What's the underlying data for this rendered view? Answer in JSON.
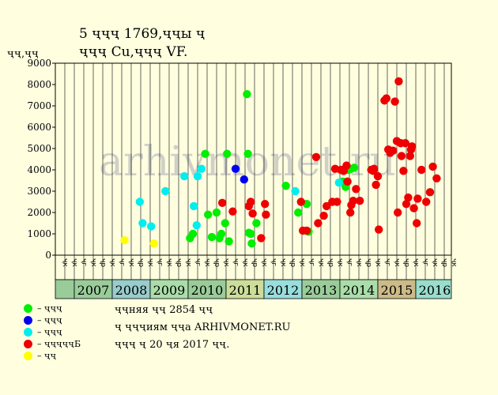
{
  "title_line1": "5 ҷҷҷ 1769,ҷҷы ҷ",
  "title_line2": "ҷҷҷ Cu,ҷҷҷ VF.",
  "y_axis_label": "ҷҷ,ҷҷ",
  "watermark": "arhivmonet.ru",
  "legend": [
    {
      "label": "– ҷҷҷ",
      "color": "#00ee00"
    },
    {
      "label": "– ҷҷҷ",
      "color": "#0000ee"
    },
    {
      "label": "– ҷҷҷ",
      "color": "#00eeee"
    },
    {
      "label": "– ҷҷҷҷҷБ",
      "color": "#ee0000"
    },
    {
      "label": "– ҷҷ",
      "color": "#ffff00"
    }
  ],
  "notes": {
    "line1": "ҷҷняя ҷҷ 2854 ҷҷ",
    "line2": "ҷ ҷҷҷиям ҷҷа ARHIVMONET.RU",
    "line3": "ҷҷҷ ҷ 20 ҷя 2017 ҷҷ."
  },
  "chart_data": {
    "type": "scatter",
    "ylim": [
      0,
      9000
    ],
    "yticks": [
      0,
      1000,
      2000,
      3000,
      4000,
      5000,
      6000,
      7000,
      8000,
      9000
    ],
    "months": [
      "ҷк",
      "ҷк",
      "ҷг",
      "ҷк",
      "ҷр",
      "ҷк",
      "ҷг",
      "ҷк",
      "ҷр",
      "ҷк",
      "ҷг",
      "ҷк",
      "ҷр",
      "ҷк",
      "ҷг",
      "ҷк",
      "ҷр",
      "ҷк",
      "ҷг",
      "ҷк",
      "ҷр",
      "ҷк",
      "ҷг",
      "ҷк",
      "ҷр",
      "ҷк",
      "ҷг",
      "ҷк",
      "ҷр",
      "ҷк",
      "ҷг",
      "ҷк",
      "ҷр",
      "ҷк",
      "ҷг",
      "ҷк",
      "ҷр",
      "ҷк",
      "ҷг",
      "ҷк",
      "ҷр",
      "ҷк",
      "ҷг",
      "ҷк",
      "ҷр",
      "ҷк",
      "ҷг",
      "ҷк",
      "ҷр",
      "ҷк"
    ],
    "years": [
      {
        "label": "",
        "start": 0,
        "span": 2,
        "color": "#99cc99"
      },
      {
        "label": "2007",
        "start": 2,
        "span": 4,
        "color": "#99cc99"
      },
      {
        "label": "2008",
        "start": 6,
        "span": 4,
        "color": "#99cccc"
      },
      {
        "label": "2009",
        "start": 10,
        "span": 4,
        "color": "#aaddaa"
      },
      {
        "label": "2010",
        "start": 14,
        "span": 4,
        "color": "#99cc99"
      },
      {
        "label": "2011",
        "start": 18,
        "span": 4,
        "color": "#ccdd99"
      },
      {
        "label": "2012",
        "start": 22,
        "span": 4,
        "color": "#99dddd"
      },
      {
        "label": "2013",
        "start": 26,
        "span": 4,
        "color": "#99cc99"
      },
      {
        "label": "2014",
        "start": 30,
        "span": 4,
        "color": "#aaddaa"
      },
      {
        "label": "2015",
        "start": 34,
        "span": 4,
        "color": "#ccbb88"
      },
      {
        "label": "2016",
        "start": 38,
        "span": 4,
        "color": "#99ddcc"
      }
    ],
    "series": [
      {
        "name": "– ҷҷҷ",
        "color": "#00ee00",
        "points": [
          [
            14.2,
            800
          ],
          [
            14.5,
            1000
          ],
          [
            15.8,
            4750
          ],
          [
            16.1,
            1900
          ],
          [
            16.5,
            850
          ],
          [
            17.0,
            2000
          ],
          [
            17.3,
            800
          ],
          [
            17.5,
            1000
          ],
          [
            17.9,
            1500
          ],
          [
            18.1,
            4750
          ],
          [
            18.3,
            650
          ],
          [
            20.2,
            7550
          ],
          [
            20.3,
            4750
          ],
          [
            20.4,
            1050
          ],
          [
            20.6,
            1000
          ],
          [
            20.7,
            550
          ],
          [
            21.2,
            1500
          ],
          [
            24.3,
            3250
          ],
          [
            25.6,
            2000
          ],
          [
            26.5,
            2400
          ],
          [
            26.7,
            1100
          ],
          [
            30.3,
            3450
          ],
          [
            30.6,
            3200
          ],
          [
            30.9,
            4000
          ],
          [
            31.2,
            4050
          ],
          [
            31.5,
            4100
          ]
        ]
      },
      {
        "name": "– ҷҷҷ",
        "color": "#0000ee",
        "points": [
          [
            19.0,
            4050
          ],
          [
            19.9,
            3550
          ]
        ]
      },
      {
        "name": "– ҷҷҷ",
        "color": "#00eeee",
        "points": [
          [
            8.9,
            2500
          ],
          [
            9.2,
            1500
          ],
          [
            10.1,
            1350
          ],
          [
            11.6,
            3000
          ],
          [
            13.6,
            3700
          ],
          [
            14.6,
            2300
          ],
          [
            14.9,
            1400
          ],
          [
            15.0,
            3700
          ],
          [
            15.4,
            4050
          ],
          [
            25.3,
            3000
          ],
          [
            29.9,
            3400
          ]
        ]
      },
      {
        "name": "– ҷҷҷҷҷБ",
        "color": "#ee0000",
        "points": [
          [
            17.6,
            2450
          ],
          [
            18.7,
            2050
          ],
          [
            20.4,
            2300
          ],
          [
            20.6,
            2500
          ],
          [
            20.8,
            1950
          ],
          [
            21.7,
            800
          ],
          [
            22.1,
            2400
          ],
          [
            22.2,
            1900
          ],
          [
            25.9,
            2500
          ],
          [
            26.1,
            1150
          ],
          [
            26.5,
            1150
          ],
          [
            27.5,
            4600
          ],
          [
            27.7,
            1500
          ],
          [
            28.3,
            1850
          ],
          [
            28.6,
            2300
          ],
          [
            29.2,
            2500
          ],
          [
            29.5,
            4050
          ],
          [
            29.7,
            2500
          ],
          [
            30.1,
            4000
          ],
          [
            30.4,
            3950
          ],
          [
            30.7,
            4200
          ],
          [
            30.8,
            3450
          ],
          [
            31.1,
            2000
          ],
          [
            31.2,
            2350
          ],
          [
            31.4,
            2550
          ],
          [
            31.7,
            3100
          ],
          [
            32.1,
            2550
          ],
          [
            33.3,
            4000
          ],
          [
            33.5,
            3950
          ],
          [
            33.6,
            4050
          ],
          [
            33.8,
            3300
          ],
          [
            34.0,
            3700
          ],
          [
            34.1,
            1200
          ],
          [
            34.7,
            7250
          ],
          [
            34.9,
            7350
          ],
          [
            35.1,
            4950
          ],
          [
            35.3,
            4800
          ],
          [
            35.6,
            4900
          ],
          [
            35.8,
            7200
          ],
          [
            36.0,
            5350
          ],
          [
            36.1,
            2000
          ],
          [
            36.2,
            8150
          ],
          [
            36.4,
            5250
          ],
          [
            36.5,
            4650
          ],
          [
            36.7,
            3950
          ],
          [
            36.9,
            5250
          ],
          [
            37.0,
            2400
          ],
          [
            37.2,
            2700
          ],
          [
            37.4,
            4650
          ],
          [
            37.5,
            4950
          ],
          [
            37.6,
            5100
          ],
          [
            37.8,
            2200
          ],
          [
            38.1,
            1500
          ],
          [
            38.2,
            2650
          ],
          [
            38.6,
            4000
          ],
          [
            39.1,
            2500
          ],
          [
            39.5,
            2950
          ],
          [
            39.8,
            4150
          ],
          [
            40.2,
            3600
          ]
        ]
      },
      {
        "name": "– ҷҷ",
        "color": "#ffff00",
        "points": [
          [
            7.3,
            700
          ],
          [
            10.4,
            550
          ]
        ]
      }
    ]
  }
}
